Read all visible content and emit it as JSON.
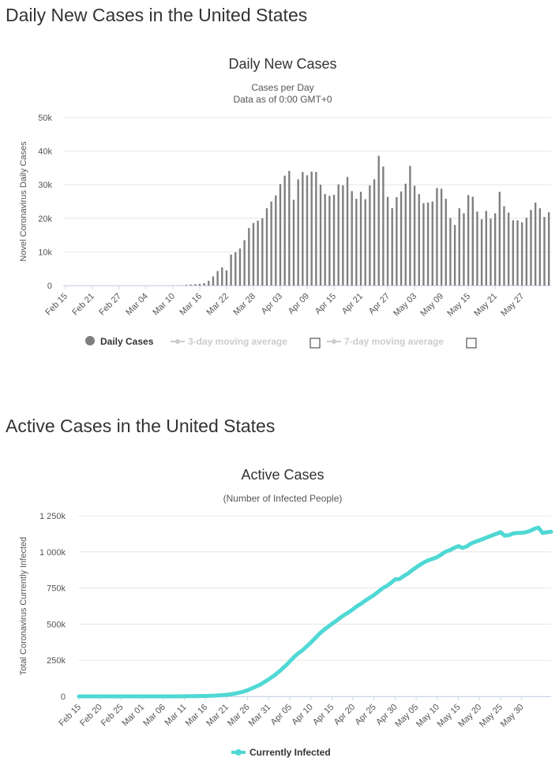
{
  "sections": {
    "daily_title": "Daily New Cases in the United States",
    "active_title": "Active Cases in the United States"
  },
  "colors": {
    "bar": "#7f7f7f",
    "line": "#4fd8d4",
    "grid": "#e6e6e6",
    "legend_inactive": "#cccccc"
  },
  "chart_data": [
    {
      "type": "bar",
      "title": "Daily New Cases",
      "subtitle_lines": [
        "Cases per Day",
        "Data as of 0:00 GMT+0"
      ],
      "xlabel": "",
      "ylabel": "Novel Coronavirus Daily Cases",
      "ylim": [
        0,
        50000
      ],
      "yticks": [
        0,
        10000,
        20000,
        30000,
        40000,
        50000
      ],
      "ytick_labels": [
        "0",
        "10k",
        "20k",
        "30k",
        "40k",
        "50k"
      ],
      "start": "Feb 15",
      "xtick_labels": [
        "Feb 15",
        "Feb 21",
        "Feb 27",
        "Mar 04",
        "Mar 10",
        "Mar 16",
        "Mar 22",
        "Mar 28",
        "Apr 03",
        "Apr 09",
        "Apr 15",
        "Apr 21",
        "Apr 27",
        "May 03",
        "May 09",
        "May 15",
        "May 21",
        "May 27"
      ],
      "xtick_step_days": 6,
      "series": [
        {
          "name": "Daily Cases",
          "values": [
            0,
            0,
            0,
            0,
            0,
            0,
            0,
            0,
            0,
            0,
            0,
            0,
            0,
            0,
            0,
            0,
            0,
            0,
            0,
            0,
            0,
            0,
            0,
            0,
            20,
            20,
            60,
            200,
            300,
            400,
            500,
            700,
            1400,
            2700,
            4300,
            5400,
            4500,
            9200,
            9900,
            11000,
            13500,
            17100,
            18600,
            19300,
            20000,
            23000,
            25000,
            26800,
            30200,
            32700,
            34100,
            25500,
            31600,
            33800,
            32800,
            33900,
            33800,
            30000,
            27200,
            26700,
            27000,
            30100,
            29800,
            32300,
            28100,
            25800,
            27900,
            25700,
            29800,
            31600,
            38600,
            35400,
            26400,
            23000,
            26300,
            28000,
            30300,
            35600,
            29700,
            27200,
            24500,
            24700,
            25000,
            29000,
            28800,
            25800,
            20100,
            18000,
            23000,
            21500,
            26900,
            26400,
            22000,
            19700,
            22200,
            19900,
            21500,
            27900,
            23600,
            21700,
            19400,
            19400,
            18800,
            20200,
            22500,
            24700,
            23000,
            20400,
            21800
          ]
        }
      ],
      "legend": [
        {
          "label": "Daily Cases",
          "active": true
        },
        {
          "label": "3-day moving average",
          "active": false
        },
        {
          "label": "7-day moving average",
          "active": false
        }
      ]
    },
    {
      "type": "line",
      "title": "Active Cases",
      "subtitle_lines": [
        "(Number of Infected People)"
      ],
      "xlabel": "",
      "ylabel": "Total Coronavirus Currently Infected",
      "ylim": [
        0,
        1250000
      ],
      "yticks": [
        0,
        250000,
        500000,
        750000,
        1000000,
        1250000
      ],
      "ytick_labels": [
        "0",
        "250k",
        "500k",
        "750k",
        "1 000k",
        "1 250k"
      ],
      "start": "Feb 15",
      "xtick_labels": [
        "Feb 15",
        "Feb 20",
        "Feb 25",
        "Mar 01",
        "Mar 06",
        "Mar 11",
        "Mar 16",
        "Mar 21",
        "Mar 26",
        "Mar 31",
        "Apr 05",
        "Apr 10",
        "Apr 15",
        "Apr 20",
        "Apr 25",
        "Apr 30",
        "May 05",
        "May 10",
        "May 15",
        "May 20",
        "May 25",
        "May 30"
      ],
      "xtick_step_days": 5,
      "series": [
        {
          "name": "Currently Infected",
          "values": [
            0,
            0,
            0,
            0,
            0,
            0,
            0,
            0,
            0,
            0,
            0,
            0,
            0,
            0,
            0,
            0,
            0,
            0,
            0,
            0,
            0,
            0,
            0,
            0,
            300,
            500,
            1000,
            1500,
            2000,
            2500,
            3000,
            4000,
            5000,
            6500,
            8500,
            11000,
            14000,
            19000,
            26000,
            33000,
            43000,
            55000,
            68000,
            82000,
            100000,
            118000,
            138000,
            160000,
            185000,
            212000,
            242000,
            272000,
            298000,
            318000,
            345000,
            372000,
            402000,
            432000,
            458000,
            480000,
            502000,
            522000,
            545000,
            565000,
            582000,
            603000,
            625000,
            643000,
            665000,
            683000,
            702000,
            725000,
            748000,
            764000,
            785000,
            810000,
            812000,
            832000,
            850000,
            872000,
            893000,
            912000,
            930000,
            943000,
            953000,
            964000,
            983000,
            1002000,
            1012000,
            1028000,
            1040000,
            1028000,
            1038000,
            1058000,
            1070000,
            1080000,
            1091000,
            1103000,
            1114000,
            1125000,
            1137000,
            1112000,
            1116000,
            1128000,
            1131000,
            1132000,
            1136000,
            1145000,
            1160000,
            1168000,
            1131000,
            1136000,
            1140000
          ]
        }
      ],
      "legend": [
        {
          "label": "Currently Infected",
          "active": true
        }
      ]
    }
  ]
}
